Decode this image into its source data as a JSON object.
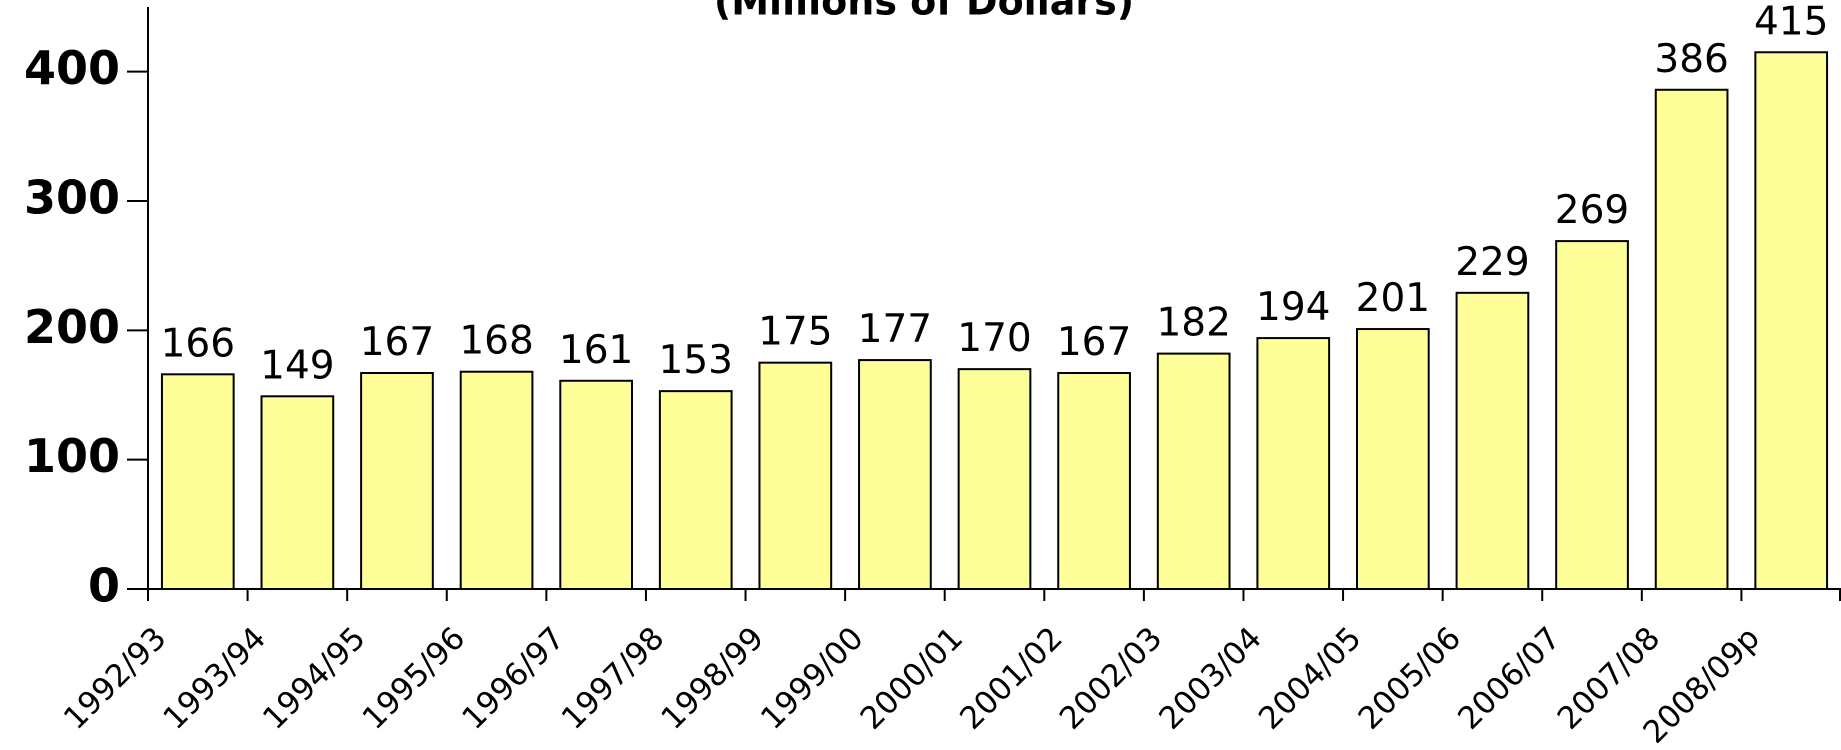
{
  "chart_data": {
    "type": "bar",
    "title": "(Millions of Dollars)",
    "categories": [
      "1992/93",
      "1993/94",
      "1994/95",
      "1995/96",
      "1996/97",
      "1997/98",
      "1998/99",
      "1999/00",
      "2000/01",
      "2001/02",
      "2002/03",
      "2003/04",
      "2004/05",
      "2005/06",
      "2006/07",
      "2007/08",
      "2008/09p"
    ],
    "values": [
      166,
      149,
      167,
      168,
      161,
      153,
      175,
      177,
      170,
      167,
      182,
      194,
      201,
      229,
      269,
      386,
      415
    ],
    "color": "#ffff99",
    "ylim": [
      0,
      450
    ],
    "yticks": [
      0,
      100,
      200,
      300,
      400
    ],
    "grid": false
  }
}
